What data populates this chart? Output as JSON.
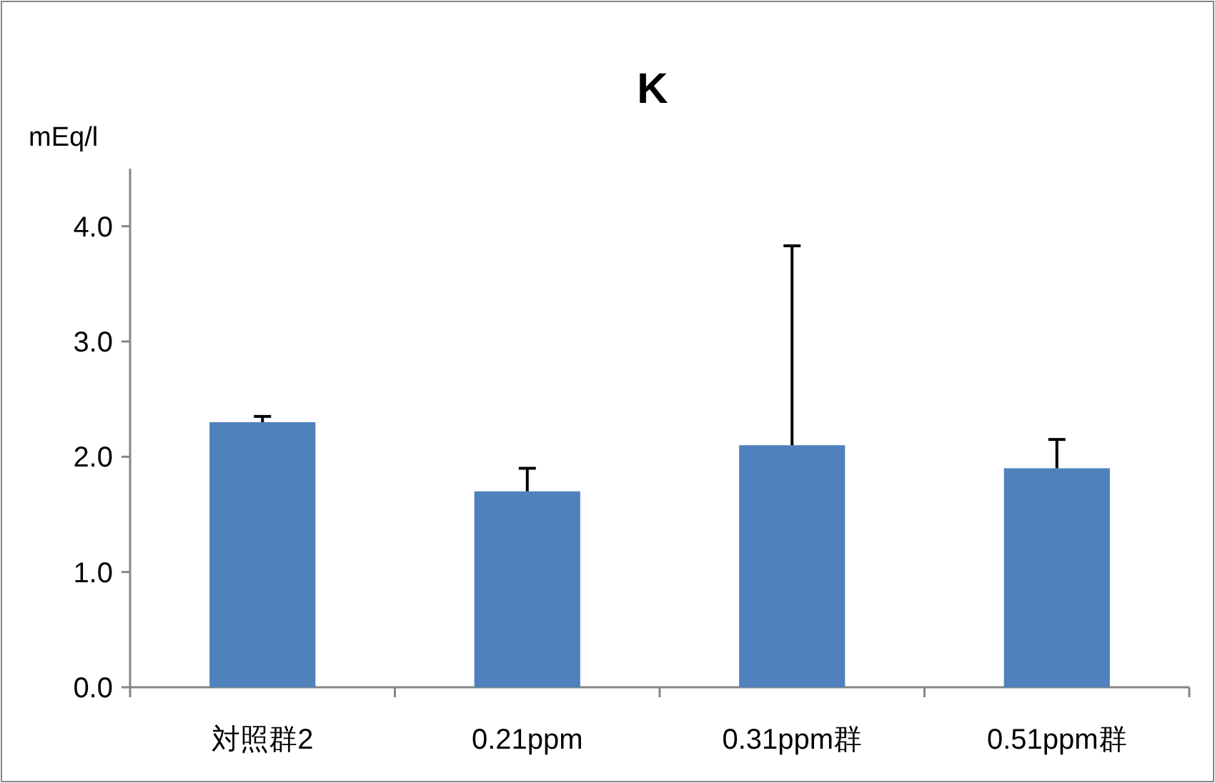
{
  "chart_data": {
    "type": "bar",
    "title": "K",
    "ylabel": "mEq/l",
    "categories": [
      "対照群2",
      "0.21ppm",
      "0.31ppm群",
      "0.51ppm群"
    ],
    "values": [
      2.3,
      1.7,
      2.1,
      1.9
    ],
    "errors": [
      [
        2.3,
        2.35
      ],
      [
        1.7,
        1.9
      ],
      [
        2.1,
        3.83
      ],
      [
        1.9,
        2.15
      ]
    ],
    "color": "#4f81bd",
    "ylim": [
      0,
      4.5
    ],
    "yticks": [
      {
        "value": 0,
        "label": "0.0"
      },
      {
        "value": 1,
        "label": "1.0"
      },
      {
        "value": 2,
        "label": "2.0"
      },
      {
        "value": 3,
        "label": "3.0"
      },
      {
        "value": 4,
        "label": "4.0"
      }
    ],
    "grid": false
  }
}
